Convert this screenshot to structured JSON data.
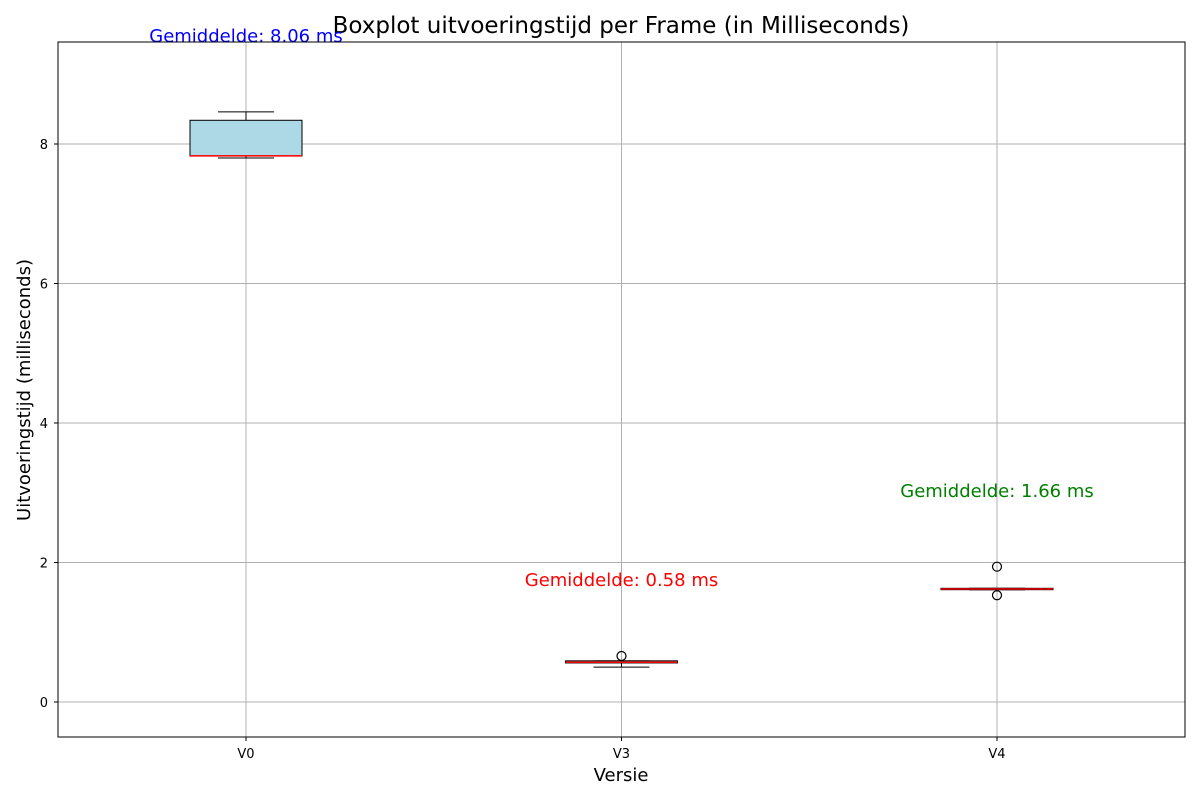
{
  "chart_data": {
    "type": "box",
    "title": "Boxplot uitvoeringstijd per Frame (in Milliseconds)",
    "xlabel": "Versie",
    "ylabel": "Uitvoeringstijd (milliseconds)",
    "categories": [
      "V0",
      "V3",
      "V4"
    ],
    "ylim": [
      -0.5,
      9.45
    ],
    "yticks": [
      0,
      2,
      4,
      6,
      8
    ],
    "grid": true,
    "boxes": [
      {
        "category": "V0",
        "whisker_low": 7.8,
        "q1": 7.83,
        "median": 7.83,
        "q3": 8.34,
        "whisker_high": 8.46,
        "fliers": [],
        "box_color": "#add8e6",
        "median_color": "#ff0000",
        "mean_label": "Gemiddelde: 8.06 ms",
        "mean_label_color": "#0000ff"
      },
      {
        "category": "V3",
        "whisker_low": 0.5,
        "q1": 0.56,
        "median": 0.57,
        "q3": 0.59,
        "whisker_high": 0.59,
        "fliers": [
          0.66
        ],
        "box_color": "#add8e6",
        "median_color": "#ff0000",
        "mean_label": "Gemiddelde: 0.58 ms",
        "mean_label_color": "#ff0000"
      },
      {
        "category": "V4",
        "whisker_low": 1.61,
        "q1": 1.61,
        "median": 1.62,
        "q3": 1.63,
        "whisker_high": 1.63,
        "fliers": [
          1.94,
          1.53
        ],
        "box_color": "#add8e6",
        "median_color": "#ff0000",
        "mean_label": "Gemiddelde: 1.66 ms",
        "mean_label_color": "#008000"
      }
    ]
  }
}
